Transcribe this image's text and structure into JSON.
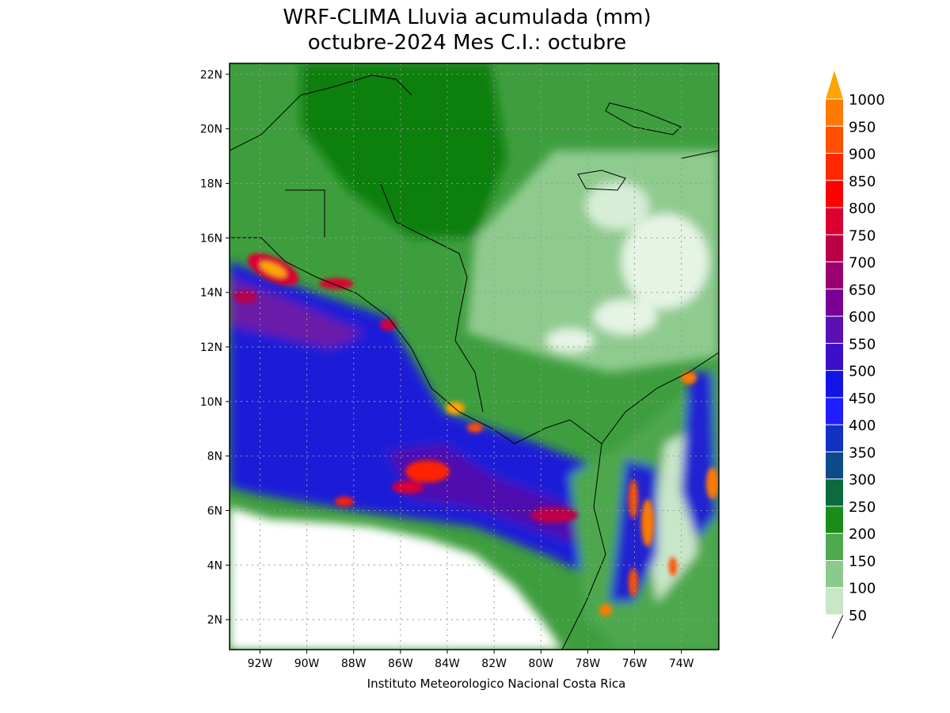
{
  "title": [
    "WRF-CLIMA Lluvia acumulada (mm)",
    "octubre-2024 Mes C.I.: octubre"
  ],
  "map": {
    "xlim": [
      -93.3,
      -72.4
    ],
    "ylim": [
      0.9,
      22.4
    ],
    "xticks": [
      {
        "value": -92,
        "label": "92W"
      },
      {
        "value": -90,
        "label": "90W"
      },
      {
        "value": -88,
        "label": "88W"
      },
      {
        "value": -86,
        "label": "86W"
      },
      {
        "value": -84,
        "label": "84W"
      },
      {
        "value": -82,
        "label": "82W"
      },
      {
        "value": -80,
        "label": "80W"
      },
      {
        "value": -78,
        "label": "78W"
      },
      {
        "value": -76,
        "label": "76W"
      },
      {
        "value": -74,
        "label": "74W"
      }
    ],
    "yticks": [
      {
        "value": 2,
        "label": "2N"
      },
      {
        "value": 4,
        "label": "4N"
      },
      {
        "value": 6,
        "label": "6N"
      },
      {
        "value": 8,
        "label": "8N"
      },
      {
        "value": 10,
        "label": "10N"
      },
      {
        "value": 12,
        "label": "12N"
      },
      {
        "value": 14,
        "label": "14N"
      },
      {
        "value": 16,
        "label": "16N"
      },
      {
        "value": 18,
        "label": "18N"
      },
      {
        "value": 20,
        "label": "20N"
      },
      {
        "value": 22,
        "label": "22N"
      }
    ],
    "grid": true
  },
  "colorbar": {
    "levels": [
      50,
      100,
      150,
      200,
      250,
      300,
      350,
      400,
      450,
      500,
      550,
      600,
      650,
      700,
      750,
      800,
      850,
      900,
      950,
      1000
    ],
    "colors": [
      "#c8e6c8",
      "#8cc98c",
      "#4ea84e",
      "#1a8c1a",
      "#0c6a3c",
      "#0c4a8c",
      "#1232c4",
      "#1e1eff",
      "#1414e6",
      "#3c10c8",
      "#5a10b4",
      "#780096",
      "#9a0070",
      "#bc0048",
      "#dc0030",
      "#ff0000",
      "#ff2800",
      "#ff5000",
      "#ff7a00"
    ],
    "over_color": "#ffa500"
  },
  "credit": "Instituto Meteorologico Nacional Costa Rica"
}
